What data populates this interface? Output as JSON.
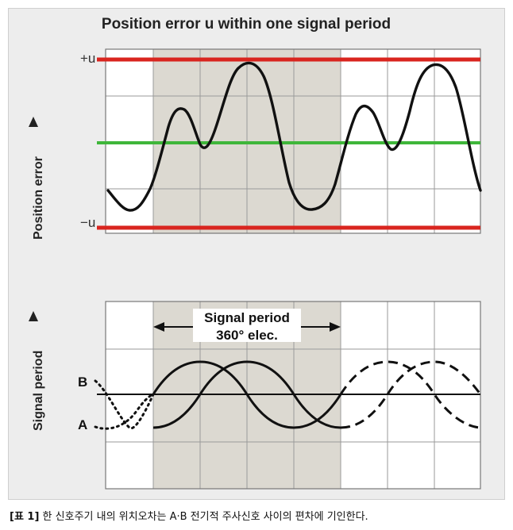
{
  "figure": {
    "title": "Position error u within one signal period",
    "colors": {
      "limit_line": "#d9251f",
      "zero_line": "#3fb63a",
      "shaded_band": "#dcd9d1",
      "plot_bg": "#ffffff",
      "grid": "#9a9a9a",
      "curve": "#111111"
    }
  },
  "top_panel": {
    "y_axis_label": "Position error",
    "upper_limit_label": "+u",
    "lower_limit_label": "−u"
  },
  "bottom_panel": {
    "y_axis_label": "Signal period",
    "period_label_line1": "Signal period",
    "period_label_line2": "360° elec.",
    "signal_b_label": "B",
    "signal_a_label": "A"
  },
  "caption": {
    "tag": "[표 1]",
    "text": " 한 신호주기 내의 위치오차는 A·B 전기적 주사신호 사이의 편차에 기인한다."
  }
}
